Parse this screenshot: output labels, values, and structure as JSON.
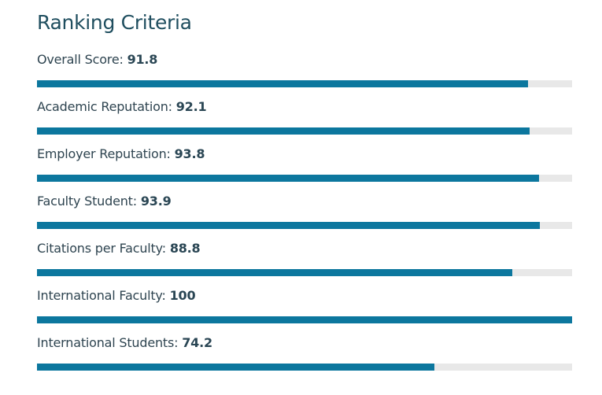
{
  "title": "Ranking Criteria",
  "colors": {
    "bar_fill": "#0c779e",
    "bar_track": "#e8e8e8",
    "title": "#1f4e5f"
  },
  "chart_data": {
    "type": "bar",
    "orientation": "horizontal",
    "title": "Ranking Criteria",
    "xlim": [
      0,
      100
    ],
    "categories": [
      "Overall Score",
      "Academic Reputation",
      "Employer Reputation",
      "Faculty Student",
      "Citations per Faculty",
      "International Faculty",
      "International Students"
    ],
    "values": [
      91.8,
      92.1,
      93.8,
      93.9,
      88.8,
      100,
      74.2
    ],
    "items": [
      {
        "label": "Overall Score:",
        "value": "91.8",
        "score": 91.8
      },
      {
        "label": "Academic Reputation:",
        "value": "92.1",
        "score": 92.1
      },
      {
        "label": "Employer Reputation:",
        "value": "93.8",
        "score": 93.8
      },
      {
        "label": "Faculty Student:",
        "value": "93.9",
        "score": 93.9
      },
      {
        "label": "Citations per Faculty:",
        "value": "88.8",
        "score": 88.8
      },
      {
        "label": "International Faculty:",
        "value": "100",
        "score": 100
      },
      {
        "label": "International Students:",
        "value": "74.2",
        "score": 74.2
      }
    ]
  }
}
